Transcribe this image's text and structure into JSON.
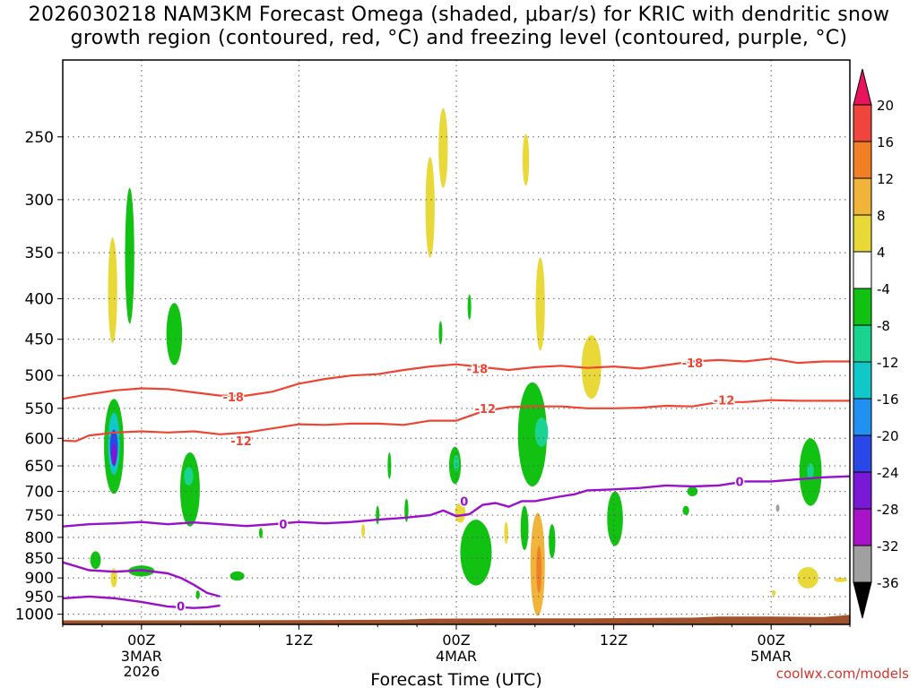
{
  "chart_data": {
    "type": "heatmap",
    "title_line1": "2026030218 NAM3KM Forecast Omega (shaded, μbar/s) for KRIC with dendritic snow",
    "title_line2": "growth region (contoured, red, °C) and freezing level (contoured, purple, °C)",
    "xlabel": "Forecast Time (UTC)",
    "credit": "coolwx.com/models",
    "y_axis": {
      "type": "log-pressure",
      "range": [
        1030,
        200
      ],
      "ticks": [
        250,
        300,
        350,
        400,
        450,
        500,
        550,
        600,
        650,
        700,
        750,
        800,
        850,
        900,
        950,
        1000
      ]
    },
    "x_axis": {
      "range_hours_from_init": [
        0,
        60
      ],
      "ticks": [
        {
          "hour": 6,
          "label": "00Z",
          "sub": "3MAR",
          "sub2": "2026"
        },
        {
          "hour": 18,
          "label": "12Z",
          "sub": "",
          "sub2": ""
        },
        {
          "hour": 30,
          "label": "00Z",
          "sub": "4MAR",
          "sub2": ""
        },
        {
          "hour": 42,
          "label": "12Z",
          "sub": "",
          "sub2": ""
        },
        {
          "hour": 54,
          "label": "00Z",
          "sub": "5MAR",
          "sub2": ""
        }
      ]
    },
    "colorbar": {
      "labels": [
        "20",
        "16",
        "12",
        "8",
        "4",
        "-4",
        "-8",
        "-12",
        "-16",
        "-20",
        "-24",
        "-28",
        "-32",
        "-36"
      ],
      "colors": [
        "#e8155e",
        "#f0453c",
        "#f07f25",
        "#f0b43a",
        "#e8d838",
        "#ffffff",
        "#12c212",
        "#19d490",
        "#11c8c8",
        "#2290f0",
        "#2a48e8",
        "#7a18d8",
        "#a812c8",
        "#a0a0a0",
        "#000000"
      ]
    },
    "contour_labels": {
      "red": [
        {
          "hour": 13,
          "p": 532,
          "text": "-18"
        },
        {
          "hour": 13.6,
          "p": 604,
          "text": "-12"
        },
        {
          "hour": 31.6,
          "p": 490,
          "text": "-18"
        },
        {
          "hour": 32.2,
          "p": 550,
          "text": "-12"
        },
        {
          "hour": 48,
          "p": 482,
          "text": "-18"
        },
        {
          "hour": 50.4,
          "p": 537,
          "text": "-12"
        }
      ],
      "purple": [
        {
          "hour": 16.8,
          "p": 770,
          "text": "0"
        },
        {
          "hour": 30.6,
          "p": 720,
          "text": "0"
        },
        {
          "hour": 9,
          "p": 977,
          "text": "0"
        },
        {
          "hour": 51.6,
          "p": 680,
          "text": "0"
        }
      ]
    },
    "red_contours": [
      {
        "name": "-18",
        "points": [
          [
            0,
            535
          ],
          [
            2,
            528
          ],
          [
            4,
            522
          ],
          [
            6,
            519
          ],
          [
            8,
            520
          ],
          [
            10,
            525
          ],
          [
            12,
            530
          ],
          [
            14,
            530
          ],
          [
            16,
            524
          ],
          [
            18,
            512
          ],
          [
            20,
            505
          ],
          [
            22,
            500
          ],
          [
            24,
            498
          ],
          [
            26,
            492
          ],
          [
            28,
            487
          ],
          [
            30,
            484
          ],
          [
            32,
            488
          ],
          [
            34,
            492
          ],
          [
            36,
            488
          ],
          [
            38,
            486
          ],
          [
            40,
            489
          ],
          [
            42,
            487
          ],
          [
            44,
            490
          ],
          [
            46,
            485
          ],
          [
            48,
            480
          ],
          [
            50,
            478
          ],
          [
            52,
            480
          ],
          [
            54,
            476
          ],
          [
            56,
            482
          ],
          [
            58,
            480
          ],
          [
            60,
            480
          ]
        ]
      },
      {
        "name": "-12",
        "points": [
          [
            0,
            604
          ],
          [
            1,
            605
          ],
          [
            2,
            595
          ],
          [
            4,
            590
          ],
          [
            6,
            588
          ],
          [
            8,
            590
          ],
          [
            10,
            588
          ],
          [
            12,
            593
          ],
          [
            14,
            590
          ],
          [
            16,
            583
          ],
          [
            18,
            576
          ],
          [
            20,
            577
          ],
          [
            22,
            575
          ],
          [
            24,
            575
          ],
          [
            26,
            577
          ],
          [
            28,
            570
          ],
          [
            30,
            570
          ],
          [
            32,
            555
          ],
          [
            34,
            548
          ],
          [
            36,
            547
          ],
          [
            38,
            547
          ],
          [
            40,
            550
          ],
          [
            42,
            550
          ],
          [
            44,
            549
          ],
          [
            46,
            546
          ],
          [
            48,
            547
          ],
          [
            50,
            540
          ],
          [
            52,
            540
          ],
          [
            54,
            537
          ],
          [
            56,
            538
          ],
          [
            58,
            538
          ],
          [
            60,
            538
          ]
        ]
      }
    ],
    "purple_contours": [
      {
        "name": "0-upper",
        "points": [
          [
            0,
            775
          ],
          [
            2,
            770
          ],
          [
            4,
            768
          ],
          [
            6,
            765
          ],
          [
            8,
            770
          ],
          [
            10,
            766
          ],
          [
            12,
            770
          ],
          [
            14,
            774
          ],
          [
            16,
            770
          ],
          [
            18,
            765
          ],
          [
            20,
            768
          ],
          [
            22,
            765
          ],
          [
            24,
            760
          ],
          [
            26,
            756
          ],
          [
            28,
            750
          ],
          [
            29,
            740
          ],
          [
            30,
            752
          ],
          [
            31,
            748
          ],
          [
            32,
            728
          ],
          [
            33,
            724
          ],
          [
            34,
            732
          ],
          [
            35,
            720
          ],
          [
            36,
            720
          ],
          [
            37,
            715
          ],
          [
            38,
            710
          ],
          [
            39,
            706
          ],
          [
            40,
            698
          ],
          [
            42,
            696
          ],
          [
            44,
            693
          ],
          [
            46,
            688
          ],
          [
            48,
            690
          ],
          [
            50,
            688
          ],
          [
            52,
            680
          ],
          [
            54,
            680
          ],
          [
            56,
            676
          ],
          [
            58,
            672
          ],
          [
            60,
            670
          ]
        ]
      },
      {
        "name": "0-lower-a",
        "points": [
          [
            0,
            860
          ],
          [
            2,
            880
          ],
          [
            4,
            884
          ],
          [
            6,
            880
          ],
          [
            8,
            888
          ],
          [
            9,
            900
          ],
          [
            10,
            918
          ],
          [
            11,
            940
          ],
          [
            12,
            950
          ]
        ]
      },
      {
        "name": "0-lower-b",
        "points": [
          [
            0,
            955
          ],
          [
            2,
            950
          ],
          [
            4,
            955
          ],
          [
            6,
            965
          ],
          [
            8,
            978
          ],
          [
            10,
            982
          ],
          [
            11,
            980
          ],
          [
            12,
            975
          ]
        ]
      }
    ],
    "omega_blobs": [
      {
        "hour": 3.9,
        "p": 620,
        "rh": 0.75,
        "rp": 85,
        "color": "#12c212"
      },
      {
        "hour": 3.9,
        "p": 612,
        "rh": 0.45,
        "rp": 55,
        "color": "#11c8c8"
      },
      {
        "hour": 3.9,
        "p": 615,
        "rh": 0.3,
        "rp": 30,
        "color": "#2a48e8"
      },
      {
        "hour": 3.9,
        "p": 630,
        "rh": 0.22,
        "rp": 20,
        "color": "#7a18d8"
      },
      {
        "hour": 3.8,
        "p": 395,
        "rh": 0.35,
        "rp": 60,
        "color": "#e8d838"
      },
      {
        "hour": 5.1,
        "p": 360,
        "rh": 0.35,
        "rp": 70,
        "color": "#12c212"
      },
      {
        "hour": 8.5,
        "p": 445,
        "rh": 0.6,
        "rp": 40,
        "color": "#12c212"
      },
      {
        "hour": 9.7,
        "p": 700,
        "rh": 0.75,
        "rp": 75,
        "color": "#12c212"
      },
      {
        "hour": 9.6,
        "p": 670,
        "rh": 0.35,
        "rp": 18,
        "color": "#19d490"
      },
      {
        "hour": 2.5,
        "p": 855,
        "rh": 0.4,
        "rp": 22,
        "color": "#12c212"
      },
      {
        "hour": 3.9,
        "p": 900,
        "rh": 0.25,
        "rp": 25,
        "color": "#e8d838"
      },
      {
        "hour": 6.0,
        "p": 882,
        "rh": 1.0,
        "rp": 14,
        "color": "#12c212"
      },
      {
        "hour": 13.3,
        "p": 895,
        "rh": 0.55,
        "rp": 12,
        "color": "#12c212"
      },
      {
        "hour": 10.3,
        "p": 945,
        "rh": 0.15,
        "rp": 12,
        "color": "#12c212"
      },
      {
        "hour": 28.0,
        "p": 310,
        "rh": 0.35,
        "rp": 45,
        "color": "#e8d838"
      },
      {
        "hour": 29.0,
        "p": 260,
        "rh": 0.35,
        "rp": 30,
        "color": "#e8d838"
      },
      {
        "hour": 35.3,
        "p": 268,
        "rh": 0.25,
        "rp": 20,
        "color": "#e8d838"
      },
      {
        "hour": 36.4,
        "p": 410,
        "rh": 0.35,
        "rp": 55,
        "color": "#e8d838"
      },
      {
        "hour": 40.3,
        "p": 490,
        "rh": 0.75,
        "rp": 45,
        "color": "#e8d838"
      },
      {
        "hour": 29.9,
        "p": 650,
        "rh": 0.45,
        "rp": 35,
        "color": "#12c212"
      },
      {
        "hour": 30.0,
        "p": 645,
        "rh": 0.2,
        "rp": 15,
        "color": "#19d490"
      },
      {
        "hour": 35.8,
        "p": 600,
        "rh": 1.1,
        "rp": 90,
        "color": "#12c212"
      },
      {
        "hour": 36.5,
        "p": 590,
        "rh": 0.5,
        "rp": 25,
        "color": "#19d490"
      },
      {
        "hour": 30.3,
        "p": 745,
        "rh": 0.4,
        "rp": 22,
        "color": "#e8d838"
      },
      {
        "hour": 31.5,
        "p": 840,
        "rh": 1.2,
        "rp": 80,
        "color": "#12c212"
      },
      {
        "hour": 36.2,
        "p": 875,
        "rh": 0.55,
        "rp": 130,
        "color": "#f0b43a"
      },
      {
        "hour": 36.3,
        "p": 880,
        "rh": 0.2,
        "rp": 60,
        "color": "#f07f25"
      },
      {
        "hour": 42.1,
        "p": 760,
        "rh": 0.6,
        "rp": 60,
        "color": "#12c212"
      },
      {
        "hour": 26.2,
        "p": 740,
        "rh": 0.15,
        "rp": 25,
        "color": "#12c212"
      },
      {
        "hour": 35.2,
        "p": 780,
        "rh": 0.3,
        "rp": 50,
        "color": "#12c212"
      },
      {
        "hour": 37.3,
        "p": 810,
        "rh": 0.25,
        "rp": 40,
        "color": "#12c212"
      },
      {
        "hour": 33.8,
        "p": 790,
        "rh": 0.15,
        "rp": 25,
        "color": "#e8d838"
      },
      {
        "hour": 57.0,
        "p": 665,
        "rh": 0.85,
        "rp": 65,
        "color": "#12c212"
      },
      {
        "hour": 57.0,
        "p": 660,
        "rh": 0.25,
        "rp": 15,
        "color": "#19d490"
      },
      {
        "hour": 56.8,
        "p": 900,
        "rh": 0.8,
        "rp": 28,
        "color": "#e8d838"
      },
      {
        "hour": 59.3,
        "p": 905,
        "rh": 0.5,
        "rp": 6,
        "color": "#e8d838"
      },
      {
        "hour": 48.0,
        "p": 700,
        "rh": 0.4,
        "rp": 10,
        "color": "#12c212"
      },
      {
        "hour": 54.2,
        "p": 940,
        "rh": 0.15,
        "rp": 8,
        "color": "#e8d838"
      },
      {
        "hour": 24.9,
        "p": 650,
        "rh": 0.08,
        "rp": 25,
        "color": "#12c212"
      },
      {
        "hour": 28.8,
        "p": 442,
        "rh": 0.08,
        "rp": 15,
        "color": "#12c212"
      },
      {
        "hour": 31.0,
        "p": 410,
        "rh": 0.08,
        "rp": 15,
        "color": "#12c212"
      },
      {
        "hour": 24.0,
        "p": 750,
        "rh": 0.08,
        "rp": 20,
        "color": "#12c212"
      },
      {
        "hour": 22.9,
        "p": 785,
        "rh": 0.08,
        "rp": 15,
        "color": "#e8d838"
      },
      {
        "hour": 15.1,
        "p": 790,
        "rh": 0.08,
        "rp": 12,
        "color": "#12c212"
      },
      {
        "hour": 47.5,
        "p": 740,
        "rh": 0.25,
        "rp": 10,
        "color": "#12c212"
      },
      {
        "hour": 54.5,
        "p": 735,
        "rh": 0.08,
        "rp": 8,
        "color": "#a0a0a0"
      }
    ],
    "terrain_color": "#a0522d"
  }
}
